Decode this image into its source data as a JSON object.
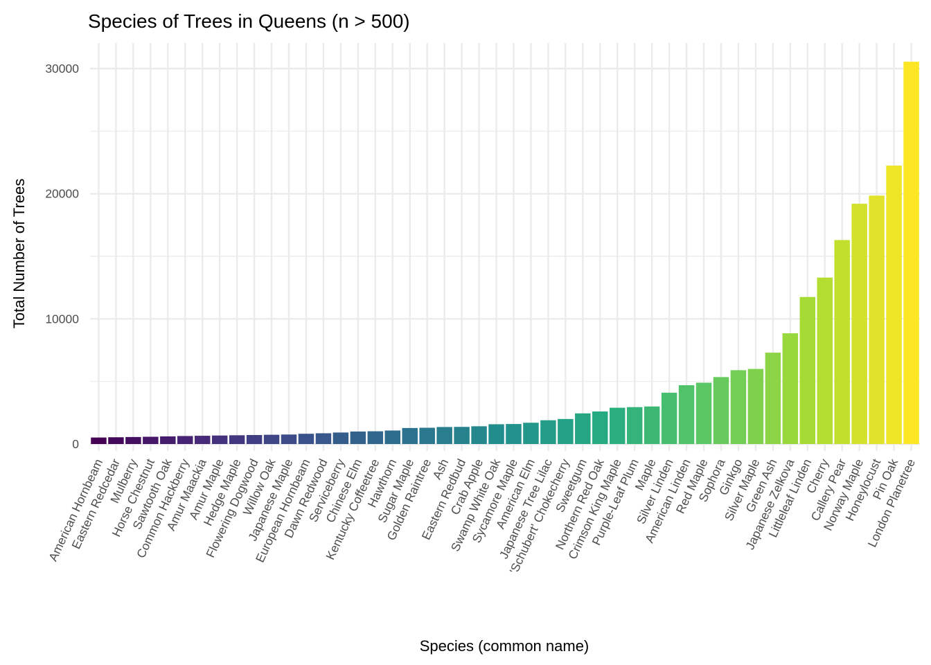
{
  "chart_data": {
    "type": "bar",
    "title": "Species of Trees in Queens (n > 500)",
    "xlabel": "Species (common name)",
    "ylabel": "Total Number of Trees",
    "ylim": [
      0,
      32000
    ],
    "yticks": [
      0,
      10000,
      20000,
      30000
    ],
    "ytick_labels": [
      "0",
      "10000",
      "20000",
      "30000"
    ],
    "grid": true,
    "legend": "none",
    "color_scale": "viridis",
    "colors": {
      "gridline": "#ebebeb",
      "low": "#440154",
      "high": "#fde725"
    },
    "categories": [
      "American Hornbeam",
      "Eastern Redcedar",
      "Mulberry",
      "Horse Chestnut",
      "Sawtooth Oak",
      "Common Hackberry",
      "Amur Maackia",
      "Amur Maple",
      "Hedge Maple",
      "Flowering Dogwood",
      "Willow Oak",
      "Japanese Maple",
      "European Hornbeam",
      "Dawn Redwood",
      "Serviceberry",
      "Chinese Elm",
      "Kentucky Coffeetree",
      "Hawthorn",
      "Sugar Maple",
      "Golden Raintree",
      "Ash",
      "Eastern Redbud",
      "Crab Apple",
      "Swamp White Oak",
      "Sycamore Maple",
      "American Elm",
      "Japanese Tree Lilac",
      "'Schubert' Chokecherry",
      "Sweetgum",
      "Northern Red Oak",
      "Crimson King Maple",
      "Purple-Leaf Plum",
      "Maple",
      "Silver Linden",
      "American Linden",
      "Red Maple",
      "Sophora",
      "Ginkgo",
      "Silver Maple",
      "Green Ash",
      "Japanese Zelkova",
      "Littleleaf Linden",
      "Cherry",
      "Callery Pear",
      "Norway Maple",
      "Honeylocust",
      "Pin Oak",
      "London Planetree"
    ],
    "values": [
      520,
      540,
      560,
      580,
      610,
      640,
      660,
      680,
      700,
      720,
      740,
      760,
      820,
      860,
      920,
      1000,
      1020,
      1080,
      1280,
      1300,
      1360,
      1370,
      1420,
      1580,
      1600,
      1700,
      1900,
      2000,
      2450,
      2600,
      2900,
      2950,
      3000,
      4100,
      4700,
      4900,
      5350,
      5900,
      6000,
      7300,
      8850,
      11750,
      13300,
      16300,
      19200,
      19850,
      22250,
      30550
    ]
  }
}
